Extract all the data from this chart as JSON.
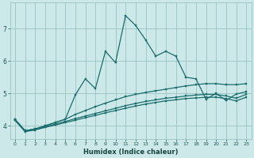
{
  "xlabel": "Humidex (Indice chaleur)",
  "bg_color": "#cce8e8",
  "grid_color": "#99c4c4",
  "line_color": "#1a6e6e",
  "xlim": [
    -0.5,
    23.5
  ],
  "ylim": [
    3.6,
    7.8
  ],
  "xticks": [
    0,
    1,
    2,
    3,
    4,
    5,
    6,
    7,
    8,
    9,
    10,
    11,
    12,
    13,
    14,
    15,
    16,
    17,
    18,
    19,
    20,
    21,
    22,
    23
  ],
  "yticks": [
    4,
    5,
    6,
    7
  ],
  "line1_x": [
    0,
    1,
    2,
    3,
    4,
    5,
    6,
    7,
    8,
    9,
    10,
    11,
    12,
    13,
    14,
    15,
    16,
    17,
    18,
    19,
    20,
    21,
    22,
    23
  ],
  "line1_y": [
    4.2,
    3.85,
    3.9,
    4.0,
    4.1,
    4.2,
    4.95,
    5.45,
    5.15,
    6.3,
    5.95,
    7.4,
    7.1,
    6.65,
    6.15,
    6.3,
    6.15,
    5.5,
    5.45,
    4.82,
    5.0,
    4.78,
    4.98,
    5.05
  ],
  "line2_x": [
    0,
    1,
    2,
    3,
    4,
    5,
    6,
    7,
    8,
    9,
    10,
    11,
    12,
    13,
    14,
    15,
    16,
    17,
    18,
    19,
    20,
    21,
    22,
    23
  ],
  "line2_y": [
    4.2,
    3.85,
    3.9,
    4.0,
    4.1,
    4.2,
    4.35,
    4.47,
    4.59,
    4.7,
    4.8,
    4.9,
    4.97,
    5.03,
    5.08,
    5.13,
    5.18,
    5.23,
    5.27,
    5.3,
    5.3,
    5.27,
    5.27,
    5.3
  ],
  "line3_x": [
    0,
    1,
    2,
    3,
    4,
    5,
    6,
    7,
    8,
    9,
    10,
    11,
    12,
    13,
    14,
    15,
    16,
    17,
    18,
    19,
    20,
    21,
    22,
    23
  ],
  "line3_y": [
    4.18,
    3.83,
    3.88,
    3.97,
    4.05,
    4.13,
    4.22,
    4.3,
    4.38,
    4.46,
    4.54,
    4.62,
    4.69,
    4.75,
    4.8,
    4.85,
    4.88,
    4.92,
    4.95,
    4.97,
    4.97,
    4.92,
    4.85,
    4.97
  ],
  "line4_x": [
    0,
    1,
    2,
    3,
    4,
    5,
    6,
    7,
    8,
    9,
    10,
    11,
    12,
    13,
    14,
    15,
    16,
    17,
    18,
    19,
    20,
    21,
    22,
    23
  ],
  "line4_y": [
    4.17,
    3.82,
    3.87,
    3.95,
    4.02,
    4.1,
    4.17,
    4.25,
    4.32,
    4.4,
    4.47,
    4.54,
    4.61,
    4.67,
    4.72,
    4.77,
    4.8,
    4.84,
    4.86,
    4.88,
    4.88,
    4.84,
    4.77,
    4.88
  ]
}
